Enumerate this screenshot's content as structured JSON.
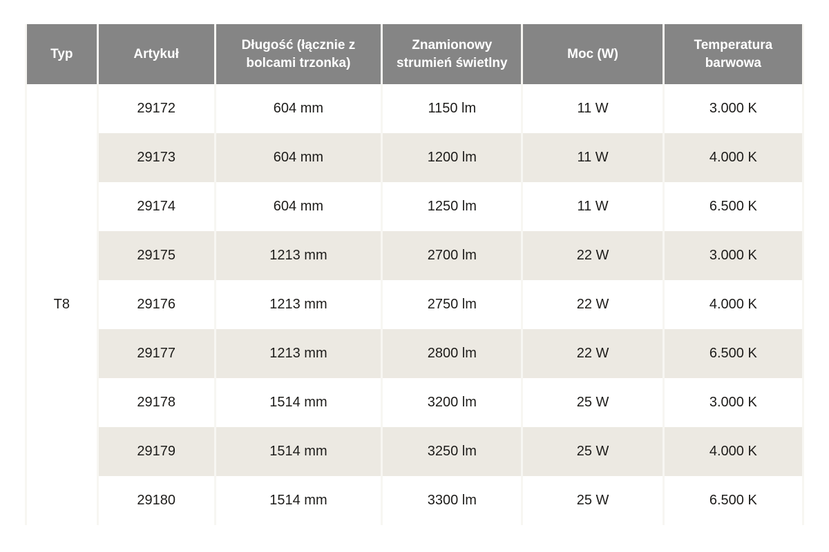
{
  "table": {
    "columns": [
      "Typ",
      "Artykuł",
      "Długość (łącznie z bolcami trzonka)",
      "Znamionowy strumień świetlny",
      "Moc (W)",
      "Temperatura barwowa"
    ],
    "type": "T8",
    "rows": [
      {
        "article": "29172",
        "length": "604 mm",
        "flux": "1150 lm",
        "power": "11 W",
        "temperature": "3.000 K"
      },
      {
        "article": "29173",
        "length": "604 mm",
        "flux": "1200 lm",
        "power": "11 W",
        "temperature": "4.000 K"
      },
      {
        "article": "29174",
        "length": "604 mm",
        "flux": "1250 lm",
        "power": "11 W",
        "temperature": "6.500 K"
      },
      {
        "article": "29175",
        "length": "1213 mm",
        "flux": "2700 lm",
        "power": "22 W",
        "temperature": "3.000 K"
      },
      {
        "article": "29176",
        "length": "1213 mm",
        "flux": "2750 lm",
        "power": "22 W",
        "temperature": "4.000 K"
      },
      {
        "article": "29177",
        "length": "1213 mm",
        "flux": "2800 lm",
        "power": "22 W",
        "temperature": "6.500 K"
      },
      {
        "article": "29178",
        "length": "1514 mm",
        "flux": "3200 lm",
        "power": "25 W",
        "temperature": "3.000 K"
      },
      {
        "article": "29179",
        "length": "1514 mm",
        "flux": "3250 lm",
        "power": "25 W",
        "temperature": "4.000 K"
      },
      {
        "article": "29180",
        "length": "1514 mm",
        "flux": "3300 lm",
        "power": "25 W",
        "temperature": "6.500 K"
      }
    ]
  },
  "colors": {
    "header_bg": "#858585",
    "header_text": "#ffffff",
    "stripe_bg": "#ece9e2",
    "text": "#1d1c1a"
  }
}
